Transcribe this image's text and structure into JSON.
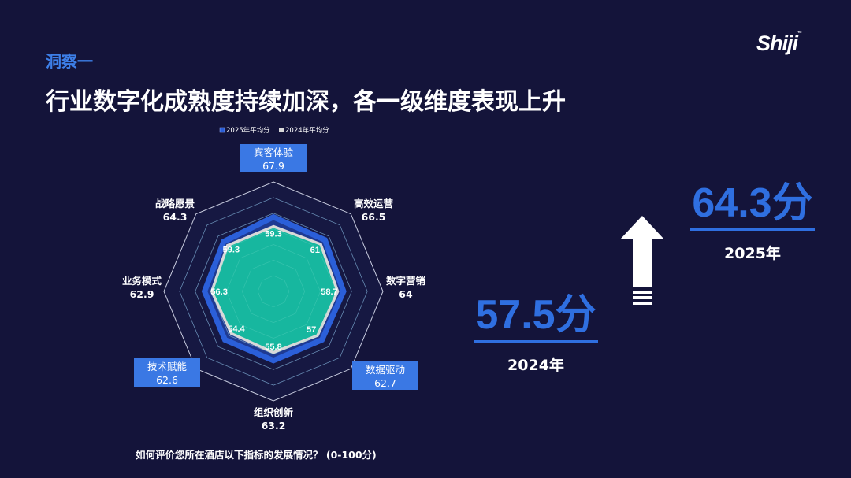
{
  "header": {
    "section_tag": "洞察一",
    "title": "行业数字化成熟度持续加深，各一级维度表现上升",
    "logo": "Shiji"
  },
  "chart_data": {
    "type": "radar",
    "legend": [
      "2025年平均分",
      "2024年平均分"
    ],
    "legend_position": "top",
    "axes": [
      "宾客体验",
      "高效运营",
      "数字营销",
      "数据驱动",
      "组织创新",
      "技术赋能",
      "业务模式",
      "战略愿景"
    ],
    "range": [
      0,
      100
    ],
    "series": [
      {
        "name": "2025年平均分",
        "values": [
          67.9,
          66.5,
          64,
          62.7,
          63.2,
          62.6,
          62.9,
          64.3
        ],
        "color": "#2b5fd9"
      },
      {
        "name": "2024年平均分",
        "values": [
          59.3,
          61,
          58.7,
          57,
          55.8,
          54.4,
          56.3,
          59.3
        ],
        "color": "#17b79f"
      }
    ],
    "highlighted_axes": [
      "宾客体验",
      "数据驱动",
      "技术赋能"
    ]
  },
  "footnote": "如何评价您所在酒店以下指标的发展情况？  (0-100分)",
  "summary": {
    "score_2024": "57.5分",
    "year_2024": "2024年",
    "score_2025": "64.3分",
    "year_2025": "2025年",
    "accent_color": "#2f6fe0"
  }
}
